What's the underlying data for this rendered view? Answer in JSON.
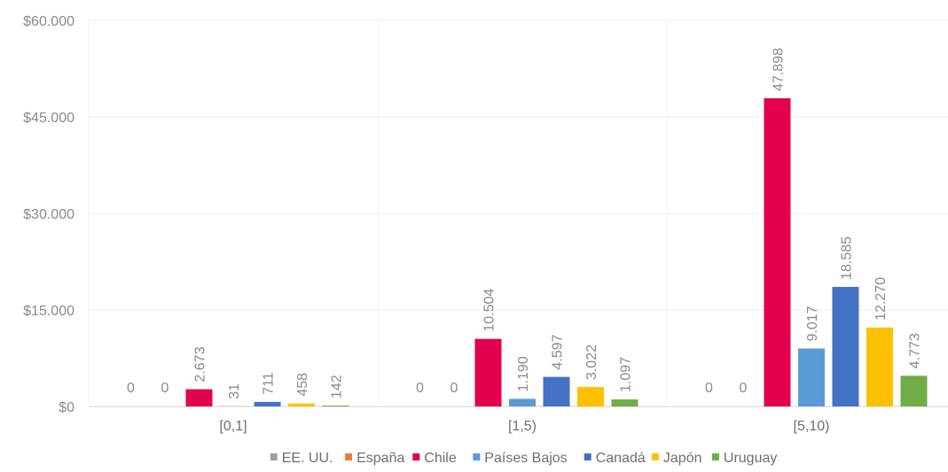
{
  "chart_data": {
    "type": "bar",
    "title": "",
    "xlabel": "",
    "ylabel": "",
    "categories": [
      "[0,1]",
      "[1,5)",
      "[5,10)"
    ],
    "ylim": [
      0,
      60000
    ],
    "yticks": [
      0,
      15000,
      30000,
      45000,
      60000
    ],
    "ytick_labels": [
      "$0",
      "$15.000",
      "$30.000",
      "$45.000",
      "$60.000"
    ],
    "grid": true,
    "legend_position": "bottom",
    "series": [
      {
        "name": "EE. UU.",
        "color": "#9e9e9e",
        "values": [
          0,
          0,
          0
        ],
        "labels": [
          "0",
          "0",
          "0"
        ]
      },
      {
        "name": "España",
        "color": "#ed7d31",
        "values": [
          0,
          0,
          0
        ],
        "labels": [
          "0",
          "0",
          "0"
        ]
      },
      {
        "name": "Chile",
        "color": "#e3004f",
        "values": [
          2673,
          10504,
          47898
        ],
        "labels": [
          "2.673",
          "10.504",
          "47.898"
        ]
      },
      {
        "name": "Países Bajos",
        "color": "#5b9bd5",
        "values": [
          31,
          1190,
          9017
        ],
        "labels": [
          "31",
          "1.190",
          "9.017"
        ]
      },
      {
        "name": "Canadá",
        "color": "#4472c4",
        "values": [
          711,
          4597,
          18585
        ],
        "labels": [
          "711",
          "4.597",
          "18.585"
        ]
      },
      {
        "name": "Japón",
        "color": "#ffc000",
        "values": [
          458,
          3022,
          12270
        ],
        "labels": [
          "458",
          "3.022",
          "12.270"
        ]
      },
      {
        "name": "Uruguay",
        "color": "#70ad47",
        "values": [
          142,
          1097,
          4773
        ],
        "labels": [
          "142",
          "1.097",
          "4.773"
        ]
      }
    ]
  }
}
